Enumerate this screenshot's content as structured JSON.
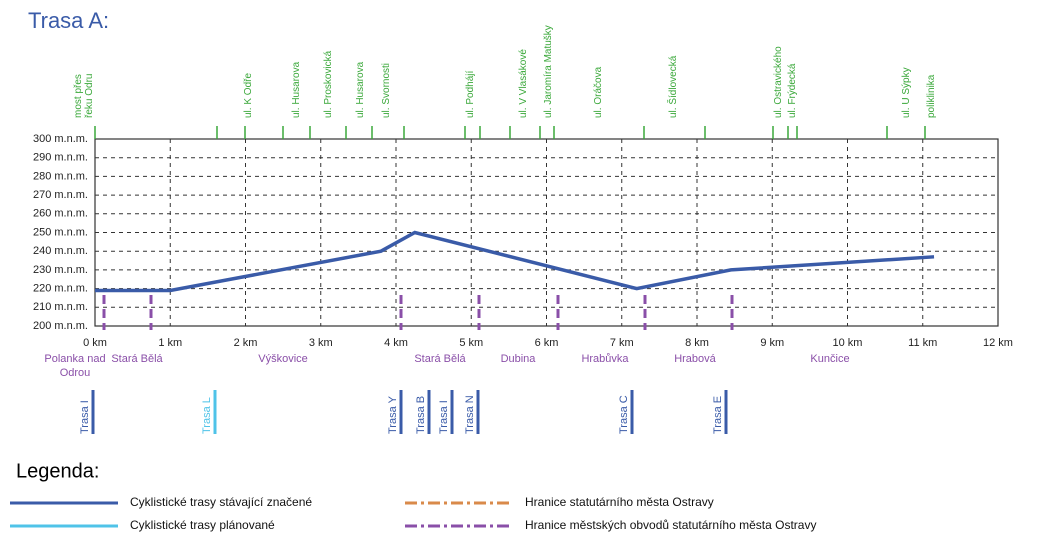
{
  "title": "Trasa A:",
  "chart_data": {
    "type": "line",
    "x": [
      0,
      1,
      3.8,
      4.25,
      7.2,
      8.45,
      11.15
    ],
    "series": [
      {
        "color": "#3a5ba8",
        "values": [
          219,
          219,
          240,
          250,
          220,
          230,
          237
        ]
      }
    ],
    "xlim": [
      0,
      12
    ],
    "ylim": [
      200,
      300
    ],
    "xticks": [
      {
        "value": 0,
        "label": "0 km"
      },
      {
        "value": 1,
        "label": "1 km"
      },
      {
        "value": 2,
        "label": "2 km"
      },
      {
        "value": 3,
        "label": "3 km"
      },
      {
        "value": 4,
        "label": "4 km"
      },
      {
        "value": 5,
        "label": "5 km"
      },
      {
        "value": 6,
        "label": "6 km"
      },
      {
        "value": 7,
        "label": "7 km"
      },
      {
        "value": 8,
        "label": "8 km"
      },
      {
        "value": 9,
        "label": "9 km"
      },
      {
        "value": 10,
        "label": "10 km"
      },
      {
        "value": 11,
        "label": "11 km"
      },
      {
        "value": 12,
        "label": "12 km"
      }
    ],
    "yticks": [
      {
        "value": 200,
        "label": "200 m.n.m."
      },
      {
        "value": 210,
        "label": "210 m.n.m."
      },
      {
        "value": 220,
        "label": "220 m.n.m."
      },
      {
        "value": 230,
        "label": "230 m.n.m."
      },
      {
        "value": 240,
        "label": "240 m.n.m."
      },
      {
        "value": 250,
        "label": "250 m.n.m."
      },
      {
        "value": 260,
        "label": "260 m.n.m."
      },
      {
        "value": 270,
        "label": "270 m.n.m."
      },
      {
        "value": 280,
        "label": "280 m.n.m."
      },
      {
        "value": 290,
        "label": "290 m.n.m."
      },
      {
        "value": 300,
        "label": "300 m.n.m."
      }
    ],
    "grid": true
  },
  "streets": [
    "most přes řeku Odru",
    "ul. K Odře",
    "ul. Husarova",
    "ul. Proskovická",
    "ul. Husarova",
    "ul. Svornosti",
    "ul. Podhájí",
    "ul. V Vlasákové",
    "ul. Jaromíra Matušky",
    "ul. Oráčova",
    "ul. Šídlovecká",
    "ul. Ostravického",
    "ul. Frýdecká",
    "ul. U Sýpky",
    "poliklinika"
  ],
  "districts": [
    "Polanka nad Odrou",
    "Stará Bělá",
    "Výškovice",
    "Stará Bělá",
    "Dubina",
    "Hrabůvka",
    "Hrabová",
    "Kunčice"
  ],
  "routes": [
    {
      "label": "Trasa I",
      "color": "#3a5ba8"
    },
    {
      "label": "Trasa L",
      "color": "#4fc3e8"
    },
    {
      "label": "Trasa Y",
      "color": "#3a5ba8"
    },
    {
      "label": "Trasa B",
      "color": "#3a5ba8"
    },
    {
      "label": "Trasa I",
      "color": "#3a5ba8"
    },
    {
      "label": "Trasa N",
      "color": "#3a5ba8"
    },
    {
      "label": "Trasa C",
      "color": "#3a5ba8"
    },
    {
      "label": "Trasa E",
      "color": "#3a5ba8"
    }
  ],
  "legend": {
    "title": "Legenda:",
    "items": [
      {
        "label": "Cyklistické trasy stávající značené",
        "color": "#3a5ba8",
        "style": "solid"
      },
      {
        "label": "Cyklistické trasy plánované",
        "color": "#4fc3e8",
        "style": "solid"
      },
      {
        "label": "Hranice statutárního města Ostravy",
        "color": "#d98a4a",
        "style": "dashdot"
      },
      {
        "label": "Hranice městských obvodů statutárního města Ostravy",
        "color": "#8a4fa8",
        "style": "dashdot"
      }
    ]
  }
}
